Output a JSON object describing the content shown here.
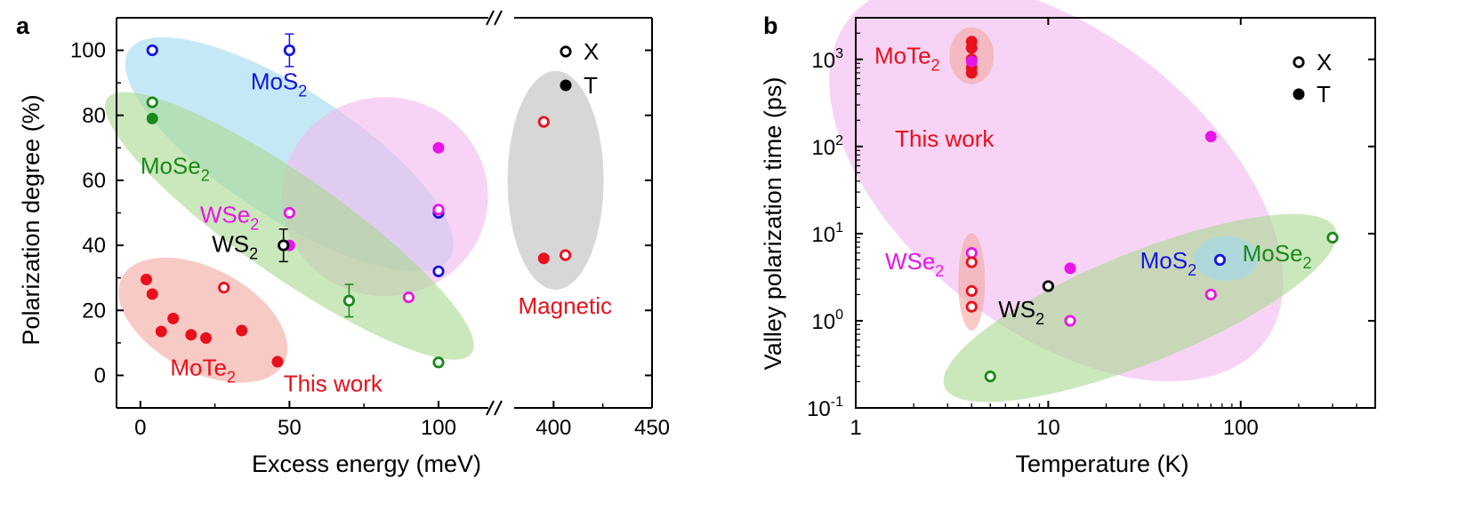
{
  "colors": {
    "MoTe2": "#e8101a",
    "WSe2": "#e815e8",
    "MoS2": "#1515e0",
    "MoSe2": "#1a8a1a",
    "WS2": "#000000",
    "red_region": "#f4a6a0",
    "magenta_region": "#f2b8ef",
    "blue_region": "#9ed8f0",
    "green_region": "#a9d88f",
    "gray_region": "#bdbdbd"
  },
  "chart_data": [
    {
      "panel": "a",
      "type": "scatter",
      "xlabel": "Excess energy (meV)",
      "ylabel": "Polarization degree (%)",
      "xlim_left": [
        -8,
        120
      ],
      "xlim_right": [
        375,
        450
      ],
      "ylim": [
        -10,
        110
      ],
      "x_ticks": [
        0,
        50,
        100,
        400,
        450
      ],
      "y_ticks": [
        0,
        20,
        40,
        60,
        80,
        100
      ],
      "axis_break": true,
      "legend": {
        "placement": "top-right",
        "entries": [
          {
            "label": "X",
            "marker": "open"
          },
          {
            "label": "T",
            "marker": "filled"
          }
        ]
      },
      "series": [
        {
          "name": "MoTe2",
          "marker": "filled",
          "color_key": "MoTe2",
          "x": [
            2,
            4,
            7,
            11,
            17,
            22,
            34,
            46
          ],
          "y": [
            29.5,
            25,
            13.5,
            17.5,
            12.5,
            11.5,
            13.8,
            4.2
          ]
        },
        {
          "name": "MoTe2",
          "marker": "open",
          "color_key": "MoTe2",
          "x": [
            28
          ],
          "y": [
            27
          ]
        },
        {
          "name": "Magnetic",
          "marker": "open",
          "color_key": "MoTe2",
          "x": [
            395,
            406
          ],
          "y": [
            78,
            37
          ]
        },
        {
          "name": "Magnetic",
          "marker": "filled",
          "color_key": "MoTe2",
          "x": [
            395
          ],
          "y": [
            36
          ]
        },
        {
          "name": "MoS2",
          "marker": "open",
          "color_key": "MoS2",
          "x": [
            4,
            50,
            100,
            100
          ],
          "y": [
            100,
            100,
            50,
            32
          ],
          "err": [
            0,
            5,
            0,
            0
          ]
        },
        {
          "name": "MoSe2",
          "marker": "open",
          "color_key": "MoSe2",
          "x": [
            4,
            70,
            100
          ],
          "y": [
            84,
            23,
            4
          ],
          "err": [
            0,
            5,
            0
          ]
        },
        {
          "name": "MoSe2",
          "marker": "filled",
          "color_key": "MoSe2",
          "x": [
            4
          ],
          "y": [
            79
          ]
        },
        {
          "name": "WSe2",
          "marker": "open",
          "color_key": "WSe2",
          "x": [
            50,
            90,
            100
          ],
          "y": [
            50,
            24,
            51
          ]
        },
        {
          "name": "WSe2",
          "marker": "filled",
          "color_key": "WSe2",
          "x": [
            50,
            100
          ],
          "y": [
            40,
            70
          ]
        },
        {
          "name": "WS2",
          "marker": "open",
          "color_key": "WS2",
          "x": [
            48
          ],
          "y": [
            40
          ],
          "err": [
            5
          ]
        }
      ],
      "annotations": [
        {
          "parts": [
            "MoS",
            "2"
          ],
          "color_key": "MoS2",
          "x": 37,
          "y": 88
        },
        {
          "parts": [
            "MoSe",
            "2"
          ],
          "color_key": "MoSe2",
          "x": 0,
          "y": 62
        },
        {
          "parts": [
            "WSe",
            "2"
          ],
          "color_key": "WSe2",
          "x": 20,
          "y": 47
        },
        {
          "parts": [
            "WS",
            "2"
          ],
          "color_key": "WS2",
          "x": 24,
          "y": 38
        },
        {
          "parts": [
            "MoTe",
            "2"
          ],
          "color_key": "MoTe2",
          "x": 10,
          "y": 0
        },
        {
          "parts": [
            "This work"
          ],
          "color_key": "MoTe2",
          "x": 48,
          "y": -5
        },
        {
          "parts": [
            "Magnetic"
          ],
          "color_key": "MoTe2",
          "x": 382,
          "y": 19
        }
      ]
    },
    {
      "panel": "b",
      "type": "scatter",
      "xlabel": "Temperature (K)",
      "ylabel": "Valley polarization time (ps)",
      "x_scale": "log",
      "y_scale": "log",
      "xlim": [
        1,
        500
      ],
      "ylim": [
        0.1,
        3000
      ],
      "x_ticks": [
        1,
        10,
        100
      ],
      "x_tick_labels": [
        "1",
        "10",
        "100"
      ],
      "y_ticks": [
        0.1,
        1,
        10,
        100,
        1000
      ],
      "y_tick_bases": [
        "10",
        "10",
        "10",
        "10",
        "10"
      ],
      "y_tick_exps": [
        "-1",
        "0",
        "1",
        "2",
        "3"
      ],
      "legend": {
        "placement": "top-right",
        "entries": [
          {
            "label": "X",
            "marker": "open"
          },
          {
            "label": "T",
            "marker": "filled"
          }
        ]
      },
      "series": [
        {
          "name": "MoTe2",
          "marker": "filled",
          "color_key": "MoTe2",
          "x": [
            4,
            4,
            4,
            4,
            4
          ],
          "y": [
            1600,
            1350,
            1000,
            800,
            700
          ]
        },
        {
          "name": "WSe2",
          "marker": "filled",
          "color_key": "WSe2",
          "x": [
            4,
            13,
            70
          ],
          "y": [
            950,
            4,
            130
          ]
        },
        {
          "name": "WSe2",
          "marker": "open",
          "color_key": "WSe2",
          "x": [
            4,
            13,
            70
          ],
          "y": [
            6,
            1,
            2
          ]
        },
        {
          "name": "MoTe2",
          "marker": "open",
          "color_key": "MoTe2",
          "x": [
            4,
            4,
            4
          ],
          "y": [
            4.7,
            2.2,
            1.45
          ]
        },
        {
          "name": "WS2",
          "marker": "open",
          "color_key": "WS2",
          "x": [
            10
          ],
          "y": [
            2.5
          ]
        },
        {
          "name": "MoS2",
          "marker": "open",
          "color_key": "MoS2",
          "x": [
            78
          ],
          "y": [
            5
          ]
        },
        {
          "name": "MoSe2",
          "marker": "open",
          "color_key": "MoSe2",
          "x": [
            5,
            300
          ],
          "y": [
            0.23,
            9
          ]
        }
      ],
      "annotations": [
        {
          "parts": [
            "MoTe",
            "2"
          ],
          "color_key": "MoTe2",
          "x": 1.25,
          "y": 900
        },
        {
          "parts": [
            "This work"
          ],
          "color_key": "MoTe2",
          "x": 1.6,
          "y": 100
        },
        {
          "parts": [
            "WSe",
            "2"
          ],
          "color_key": "WSe2",
          "x": 1.42,
          "y": 3.9
        },
        {
          "parts": [
            "WS",
            "2"
          ],
          "color_key": "WS2",
          "x": 5.5,
          "y": 1.1
        },
        {
          "parts": [
            "MoS",
            "2"
          ],
          "color_key": "MoS2",
          "x": 30,
          "y": 4
        },
        {
          "parts": [
            "MoSe",
            "2"
          ],
          "color_key": "MoSe2",
          "x": 102,
          "y": 4.8
        }
      ]
    }
  ],
  "panel_labels": [
    "a",
    "b"
  ]
}
